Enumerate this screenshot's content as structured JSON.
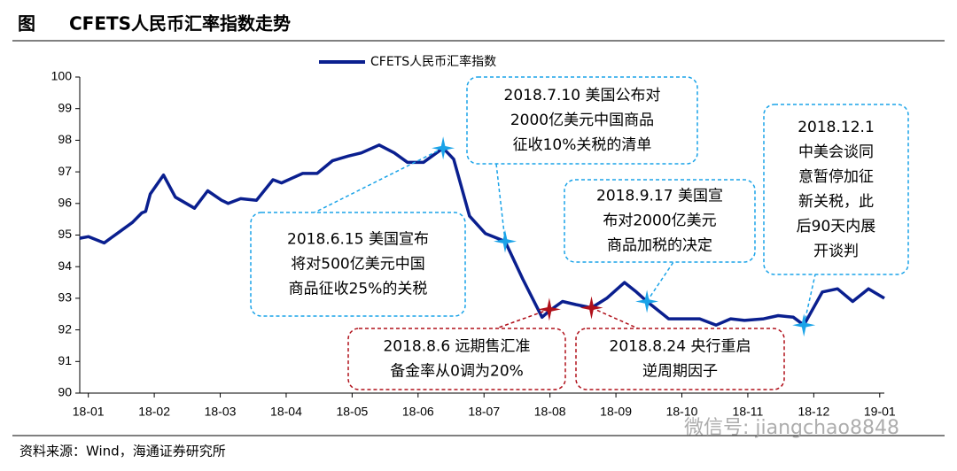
{
  "figure_label": "图",
  "chart_data": {
    "type": "line",
    "title": "CFETS人民币汇率指数走势",
    "xlim": [
      -0.13,
      12.07
    ],
    "xticks": [
      {
        "value": 0,
        "label": "18-01"
      },
      {
        "value": 1,
        "label": "18-02"
      },
      {
        "value": 2,
        "label": "18-03"
      },
      {
        "value": 3,
        "label": "18-04"
      },
      {
        "value": 4,
        "label": "18-05"
      },
      {
        "value": 5,
        "label": "18-06"
      },
      {
        "value": 6,
        "label": "18-07"
      },
      {
        "value": 7,
        "label": "18-08"
      },
      {
        "value": 8,
        "label": "18-09"
      },
      {
        "value": 9,
        "label": "18-10"
      },
      {
        "value": 10,
        "label": "18-11"
      },
      {
        "value": 11,
        "label": "18-12"
      },
      {
        "value": 12,
        "label": "19-01"
      }
    ],
    "ylim": [
      90,
      100
    ],
    "yticks": [
      90,
      91,
      92,
      93,
      94,
      95,
      96,
      97,
      98,
      99,
      100
    ],
    "legend": "top",
    "series": [
      {
        "name": "CFETS人民币汇率指数",
        "color": "#0a1f8f",
        "x": [
          -0.13,
          0,
          0.24,
          0.47,
          0.67,
          0.81,
          0.87,
          0.94,
          1.14,
          1.32,
          1.61,
          1.81,
          2.02,
          2.12,
          2.31,
          2.55,
          2.8,
          2.93,
          3.09,
          3.25,
          3.47,
          3.7,
          3.94,
          4.14,
          4.41,
          4.64,
          4.84,
          5.08,
          5.38,
          5.54,
          5.78,
          6.02,
          6.32,
          6.59,
          6.88,
          6.99,
          7.19,
          7.39,
          7.63,
          7.86,
          8.13,
          8.31,
          8.47,
          8.8,
          9.01,
          9.27,
          9.52,
          9.74,
          9.95,
          10.24,
          10.46,
          10.69,
          10.85,
          11.13,
          11.36,
          11.59,
          11.83,
          12.07
        ],
        "values": [
          94.9,
          94.95,
          94.75,
          95.1,
          95.4,
          95.7,
          95.75,
          96.3,
          96.9,
          96.2,
          95.85,
          96.4,
          96.1,
          96.0,
          96.15,
          96.1,
          96.75,
          96.65,
          96.8,
          96.95,
          96.95,
          97.35,
          97.5,
          97.6,
          97.85,
          97.6,
          97.3,
          97.3,
          97.75,
          97.4,
          95.6,
          95.05,
          94.8,
          93.6,
          92.4,
          92.6,
          92.9,
          92.8,
          92.7,
          93.0,
          93.5,
          93.2,
          92.9,
          92.35,
          92.35,
          92.35,
          92.15,
          92.35,
          92.3,
          92.35,
          92.45,
          92.4,
          92.15,
          93.2,
          93.3,
          92.9,
          93.3,
          93.0
        ]
      }
    ],
    "annotations": [
      {
        "x": 5.38,
        "y": 97.75,
        "color": "#1aa3e8",
        "text": [
          "2018.6.15 美国宣布",
          "将对500亿美元中国",
          "商品征收25%的关税"
        ]
      },
      {
        "x": 6.32,
        "y": 94.8,
        "color": "#1aa3e8",
        "text": [
          "2018.7.10 美国公布对",
          "2000亿美元中国商品",
          "征收10%关税的清单"
        ]
      },
      {
        "x": 8.47,
        "y": 92.9,
        "color": "#1aa3e8",
        "text": [
          "2018.9.17 美国宣",
          "布对2000亿美元",
          "商品加税的决定"
        ]
      },
      {
        "x": 10.85,
        "y": 92.15,
        "color": "#1aa3e8",
        "text": [
          "2018.12.1",
          "中美会谈同",
          "意暂停加征",
          "新关税，此",
          "后90天内展",
          "开谈判"
        ]
      },
      {
        "x": 6.99,
        "y": 92.65,
        "color": "#b0101a",
        "text": [
          "2018.8.6 远期售汇准",
          "备金率从0调为20%"
        ]
      },
      {
        "x": 7.63,
        "y": 92.7,
        "color": "#b0101a",
        "text": [
          "2018.8.24 央行重启",
          "逆周期因子"
        ]
      }
    ]
  },
  "source": "资料来源：Wind，海通证券研究所",
  "watermark": "微信号: jiangchao8848"
}
